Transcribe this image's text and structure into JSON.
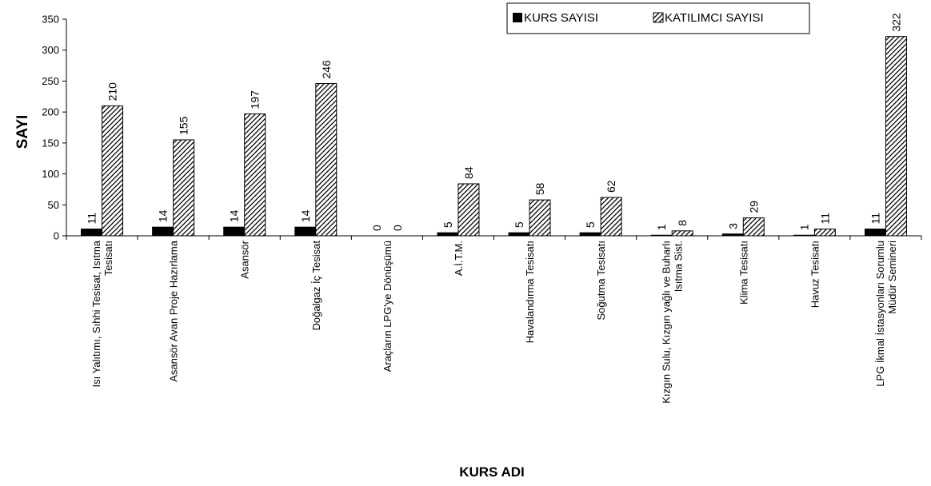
{
  "chart_data": {
    "type": "bar",
    "xlabel": "KURS ADI",
    "ylabel": "SAYI",
    "ylim": [
      0,
      350
    ],
    "ytick_step": 50,
    "grid": false,
    "legend_position": "top-right",
    "categories": [
      [
        "Isı Yalıtımı, Sıhhi Tesisat, Isıtma",
        "Tesisatı"
      ],
      [
        "Asansör Avan Proje Hazırlama"
      ],
      [
        "Asansör"
      ],
      [
        "Doğalgaz İç Tesisat"
      ],
      [
        "Araçların LPG'ye Dönüşümü"
      ],
      [
        "A.İ.T.M."
      ],
      [
        "Havalandırma Tesisatı"
      ],
      [
        "Soğutma Tesisatı"
      ],
      [
        "Kızgın Sulu, Kızgın yağlı ve Buharlı",
        "Isıtma Sist."
      ],
      [
        "Klima Tesisatı"
      ],
      [
        "Havuz Tesisatı"
      ],
      [
        "LPG İkmal İstasyonları Sorumlu",
        "Müdür Semineri"
      ]
    ],
    "series": [
      {
        "name": "KURS SAYISI",
        "fill": "solid",
        "color": "#000000",
        "values": [
          11,
          14,
          14,
          14,
          0,
          5,
          5,
          5,
          1,
          3,
          1,
          11
        ]
      },
      {
        "name": "KATILIMCI SAYISI",
        "fill": "hatched",
        "color": "#000000",
        "values": [
          210,
          155,
          197,
          246,
          0,
          84,
          58,
          62,
          8,
          29,
          11,
          322
        ]
      }
    ]
  }
}
